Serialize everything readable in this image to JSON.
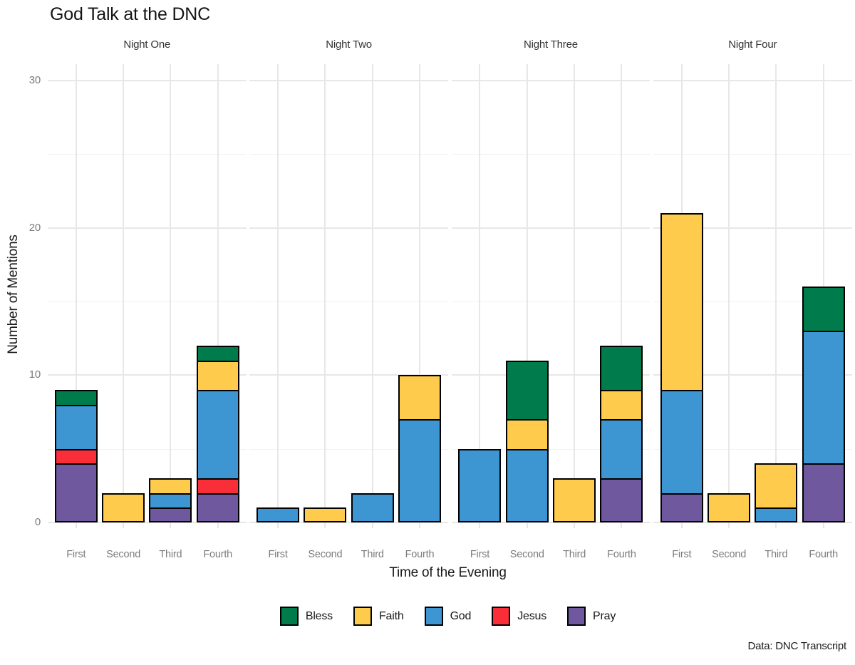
{
  "title": "God Talk at the DNC",
  "caption": "Data: DNC Transcript",
  "axes": {
    "x_title": "Time of the Evening",
    "y_title": "Number of Mentions",
    "y_ticks": [
      0,
      10,
      20,
      30
    ],
    "y_minor_gridlines": [
      5,
      15,
      25
    ],
    "x_categories": [
      "First",
      "Second",
      "Third",
      "Fourth"
    ]
  },
  "legend": {
    "entries": [
      "Bless",
      "Faith",
      "God",
      "Jesus",
      "Pray"
    ]
  },
  "colors": {
    "Bless": "#007B4B",
    "Faith": "#FFCB4D",
    "God": "#3D95D2",
    "Jesus": "#FA2E39",
    "Pray": "#6F589E",
    "grid_major": "#E7E7E7",
    "grid_minor": "#F2F2F2",
    "bar_outline": "#000000",
    "axis_text": "#7C7C7C"
  },
  "chart_data": {
    "type": "bar",
    "stacked": true,
    "title": "God Talk at the DNC",
    "xlabel": "Time of the Evening",
    "ylabel": "Number of Mentions",
    "ylim": [
      0,
      31
    ],
    "y_ticks": [
      0,
      10,
      20,
      30
    ],
    "grid": true,
    "legend_position": "bottom",
    "categories": [
      "First",
      "Second",
      "Third",
      "Fourth"
    ],
    "stack_order_bottom_to_top": [
      "Pray",
      "Jesus",
      "God",
      "Faith",
      "Bless"
    ],
    "facets": [
      {
        "label": "Night One",
        "values": [
          {
            "category": "First",
            "Pray": 4,
            "Jesus": 1,
            "God": 3,
            "Faith": 0,
            "Bless": 1
          },
          {
            "category": "Second",
            "Pray": 0,
            "Jesus": 0,
            "God": 0,
            "Faith": 2,
            "Bless": 0
          },
          {
            "category": "Third",
            "Pray": 1,
            "Jesus": 0,
            "God": 1,
            "Faith": 1,
            "Bless": 0
          },
          {
            "category": "Fourth",
            "Pray": 2,
            "Jesus": 1,
            "God": 6,
            "Faith": 2,
            "Bless": 1
          }
        ]
      },
      {
        "label": "Night Two",
        "values": [
          {
            "category": "First",
            "Pray": 0,
            "Jesus": 0,
            "God": 1,
            "Faith": 0,
            "Bless": 0
          },
          {
            "category": "Second",
            "Pray": 0,
            "Jesus": 0,
            "God": 0,
            "Faith": 1,
            "Bless": 0
          },
          {
            "category": "Third",
            "Pray": 0,
            "Jesus": 0,
            "God": 2,
            "Faith": 0,
            "Bless": 0
          },
          {
            "category": "Fourth",
            "Pray": 0,
            "Jesus": 0,
            "God": 7,
            "Faith": 3,
            "Bless": 0
          }
        ]
      },
      {
        "label": "Night Three",
        "values": [
          {
            "category": "First",
            "Pray": 0,
            "Jesus": 0,
            "God": 5,
            "Faith": 0,
            "Bless": 0
          },
          {
            "category": "Second",
            "Pray": 0,
            "Jesus": 0,
            "God": 5,
            "Faith": 2,
            "Bless": 4
          },
          {
            "category": "Third",
            "Pray": 0,
            "Jesus": 0,
            "God": 0,
            "Faith": 3,
            "Bless": 0
          },
          {
            "category": "Fourth",
            "Pray": 3,
            "Jesus": 0,
            "God": 4,
            "Faith": 2,
            "Bless": 3
          }
        ]
      },
      {
        "label": "Night Four",
        "values": [
          {
            "category": "First",
            "Pray": 2,
            "Jesus": 0,
            "God": 7,
            "Faith": 12,
            "Bless": 0
          },
          {
            "category": "Second",
            "Pray": 0,
            "Jesus": 0,
            "God": 0,
            "Faith": 2,
            "Bless": 0
          },
          {
            "category": "Third",
            "Pray": 0,
            "Jesus": 0,
            "God": 1,
            "Faith": 3,
            "Bless": 0
          },
          {
            "category": "Fourth",
            "Pray": 4,
            "Jesus": 0,
            "God": 9,
            "Faith": 0,
            "Bless": 3
          }
        ]
      }
    ]
  }
}
